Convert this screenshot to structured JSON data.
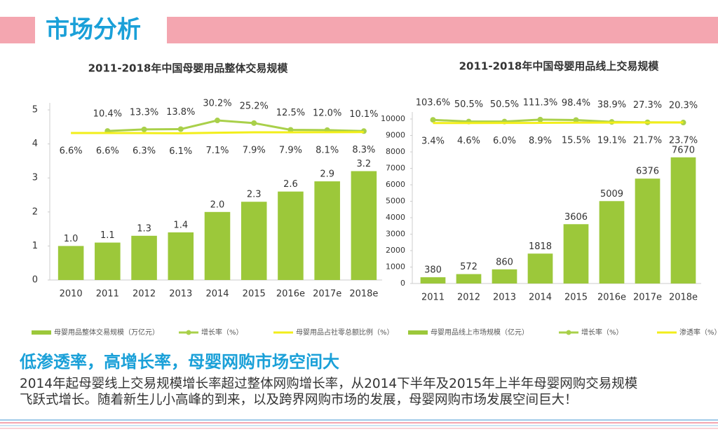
{
  "header": {
    "title": "市场分析"
  },
  "chart_data": [
    {
      "type": "bar",
      "title": "2011-2018年中国母婴用品整体交易规模",
      "categories": [
        "2010",
        "2011",
        "2012",
        "2013",
        "2014",
        "2015",
        "2016e",
        "2017e",
        "2018e"
      ],
      "series": [
        {
          "name": "母婴用品整体交易规模（万亿元）",
          "type": "bar",
          "color": "#9cc83a",
          "values": [
            1.0,
            1.1,
            1.3,
            1.4,
            2.0,
            2.3,
            2.6,
            2.9,
            3.2
          ],
          "value_labels": [
            "1.0",
            "1.1",
            "1.3",
            "1.4",
            "2.0",
            "2.3",
            "2.6",
            "2.9",
            "3.2"
          ]
        },
        {
          "name": "增长率（%）",
          "type": "line",
          "axis": "y2",
          "color": "#a9d04a",
          "markers": true,
          "values": [
            null,
            10.4,
            13.3,
            13.8,
            30.2,
            25.2,
            12.5,
            12.0,
            10.1
          ],
          "value_labels": [
            null,
            "10.4%",
            "13.3%",
            "13.8%",
            "30.2%",
            "25.2%",
            "12.5%",
            "12.0%",
            "10.1%"
          ]
        },
        {
          "name": "母婴用品占社零总额比例（%）",
          "type": "line",
          "axis": "y2",
          "color": "#f2ee1a",
          "markers": false,
          "values": [
            6.6,
            6.6,
            6.3,
            6.1,
            7.1,
            7.9,
            7.9,
            8.1,
            8.3
          ],
          "value_labels": [
            "6.6%",
            "6.6%",
            "6.3%",
            "6.1%",
            "7.1%",
            "7.9%",
            "7.9%",
            "8.1%",
            "8.3%"
          ]
        }
      ],
      "ylim": [
        0,
        5
      ],
      "yticks": [
        0,
        1,
        2,
        3,
        4,
        5
      ],
      "y2lim": [
        -270,
        50
      ],
      "grid": false,
      "legend": "bottom"
    },
    {
      "type": "bar",
      "title": "2011-2018年中国母婴用品线上交易规模",
      "categories": [
        "2011",
        "2012",
        "2013",
        "2014",
        "2015",
        "2016e",
        "2017e",
        "2018e"
      ],
      "series": [
        {
          "name": "母婴用品线上市场规模（亿元）",
          "type": "bar",
          "color": "#9cc83a",
          "values": [
            380,
            572,
            860,
            1818,
            3606,
            5009,
            6376,
            7670
          ]
        },
        {
          "name": "增长率（%）",
          "type": "line",
          "axis": "y2",
          "color": "#a9d04a",
          "markers": true,
          "values": [
            103.6,
            50.5,
            50.5,
            111.3,
            98.4,
            38.9,
            27.3,
            20.3
          ],
          "value_labels": [
            "103.6%",
            "50.5%",
            "50.5%",
            "111.3%",
            "98.4%",
            "38.9%",
            "27.3%",
            "20.3%"
          ]
        },
        {
          "name": "渗透率（%）",
          "type": "line",
          "axis": "y2",
          "color": "#f2ee1a",
          "markers": false,
          "values": [
            3.4,
            4.6,
            6.0,
            8.9,
            15.5,
            19.1,
            21.7,
            23.7
          ],
          "value_labels": [
            "3.4%",
            "4.6%",
            "6.0%",
            "8.9%",
            "15.5%",
            "19.1%",
            "21.7%",
            "23.7%"
          ]
        }
      ],
      "ylim": [
        0,
        10000
      ],
      "yticks": [
        0,
        1000,
        2000,
        3000,
        4000,
        5000,
        6000,
        7000,
        8000,
        9000,
        10000
      ],
      "y2lim": [
        -5000,
        130
      ],
      "grid": false,
      "legend": "bottom"
    }
  ],
  "summary": {
    "headline": "低渗透率，高增长率，母婴网购市场空间大",
    "body": [
      "2014年起母婴线上交易规模增长率超过整体网购增长率，从2014下半年及2015年上半年母婴网购交易规模",
      "飞跃式增长。随着新生儿小高峰的到来，以及跨界网购市场的发展，母婴网购市场发展空间巨大！"
    ]
  }
}
